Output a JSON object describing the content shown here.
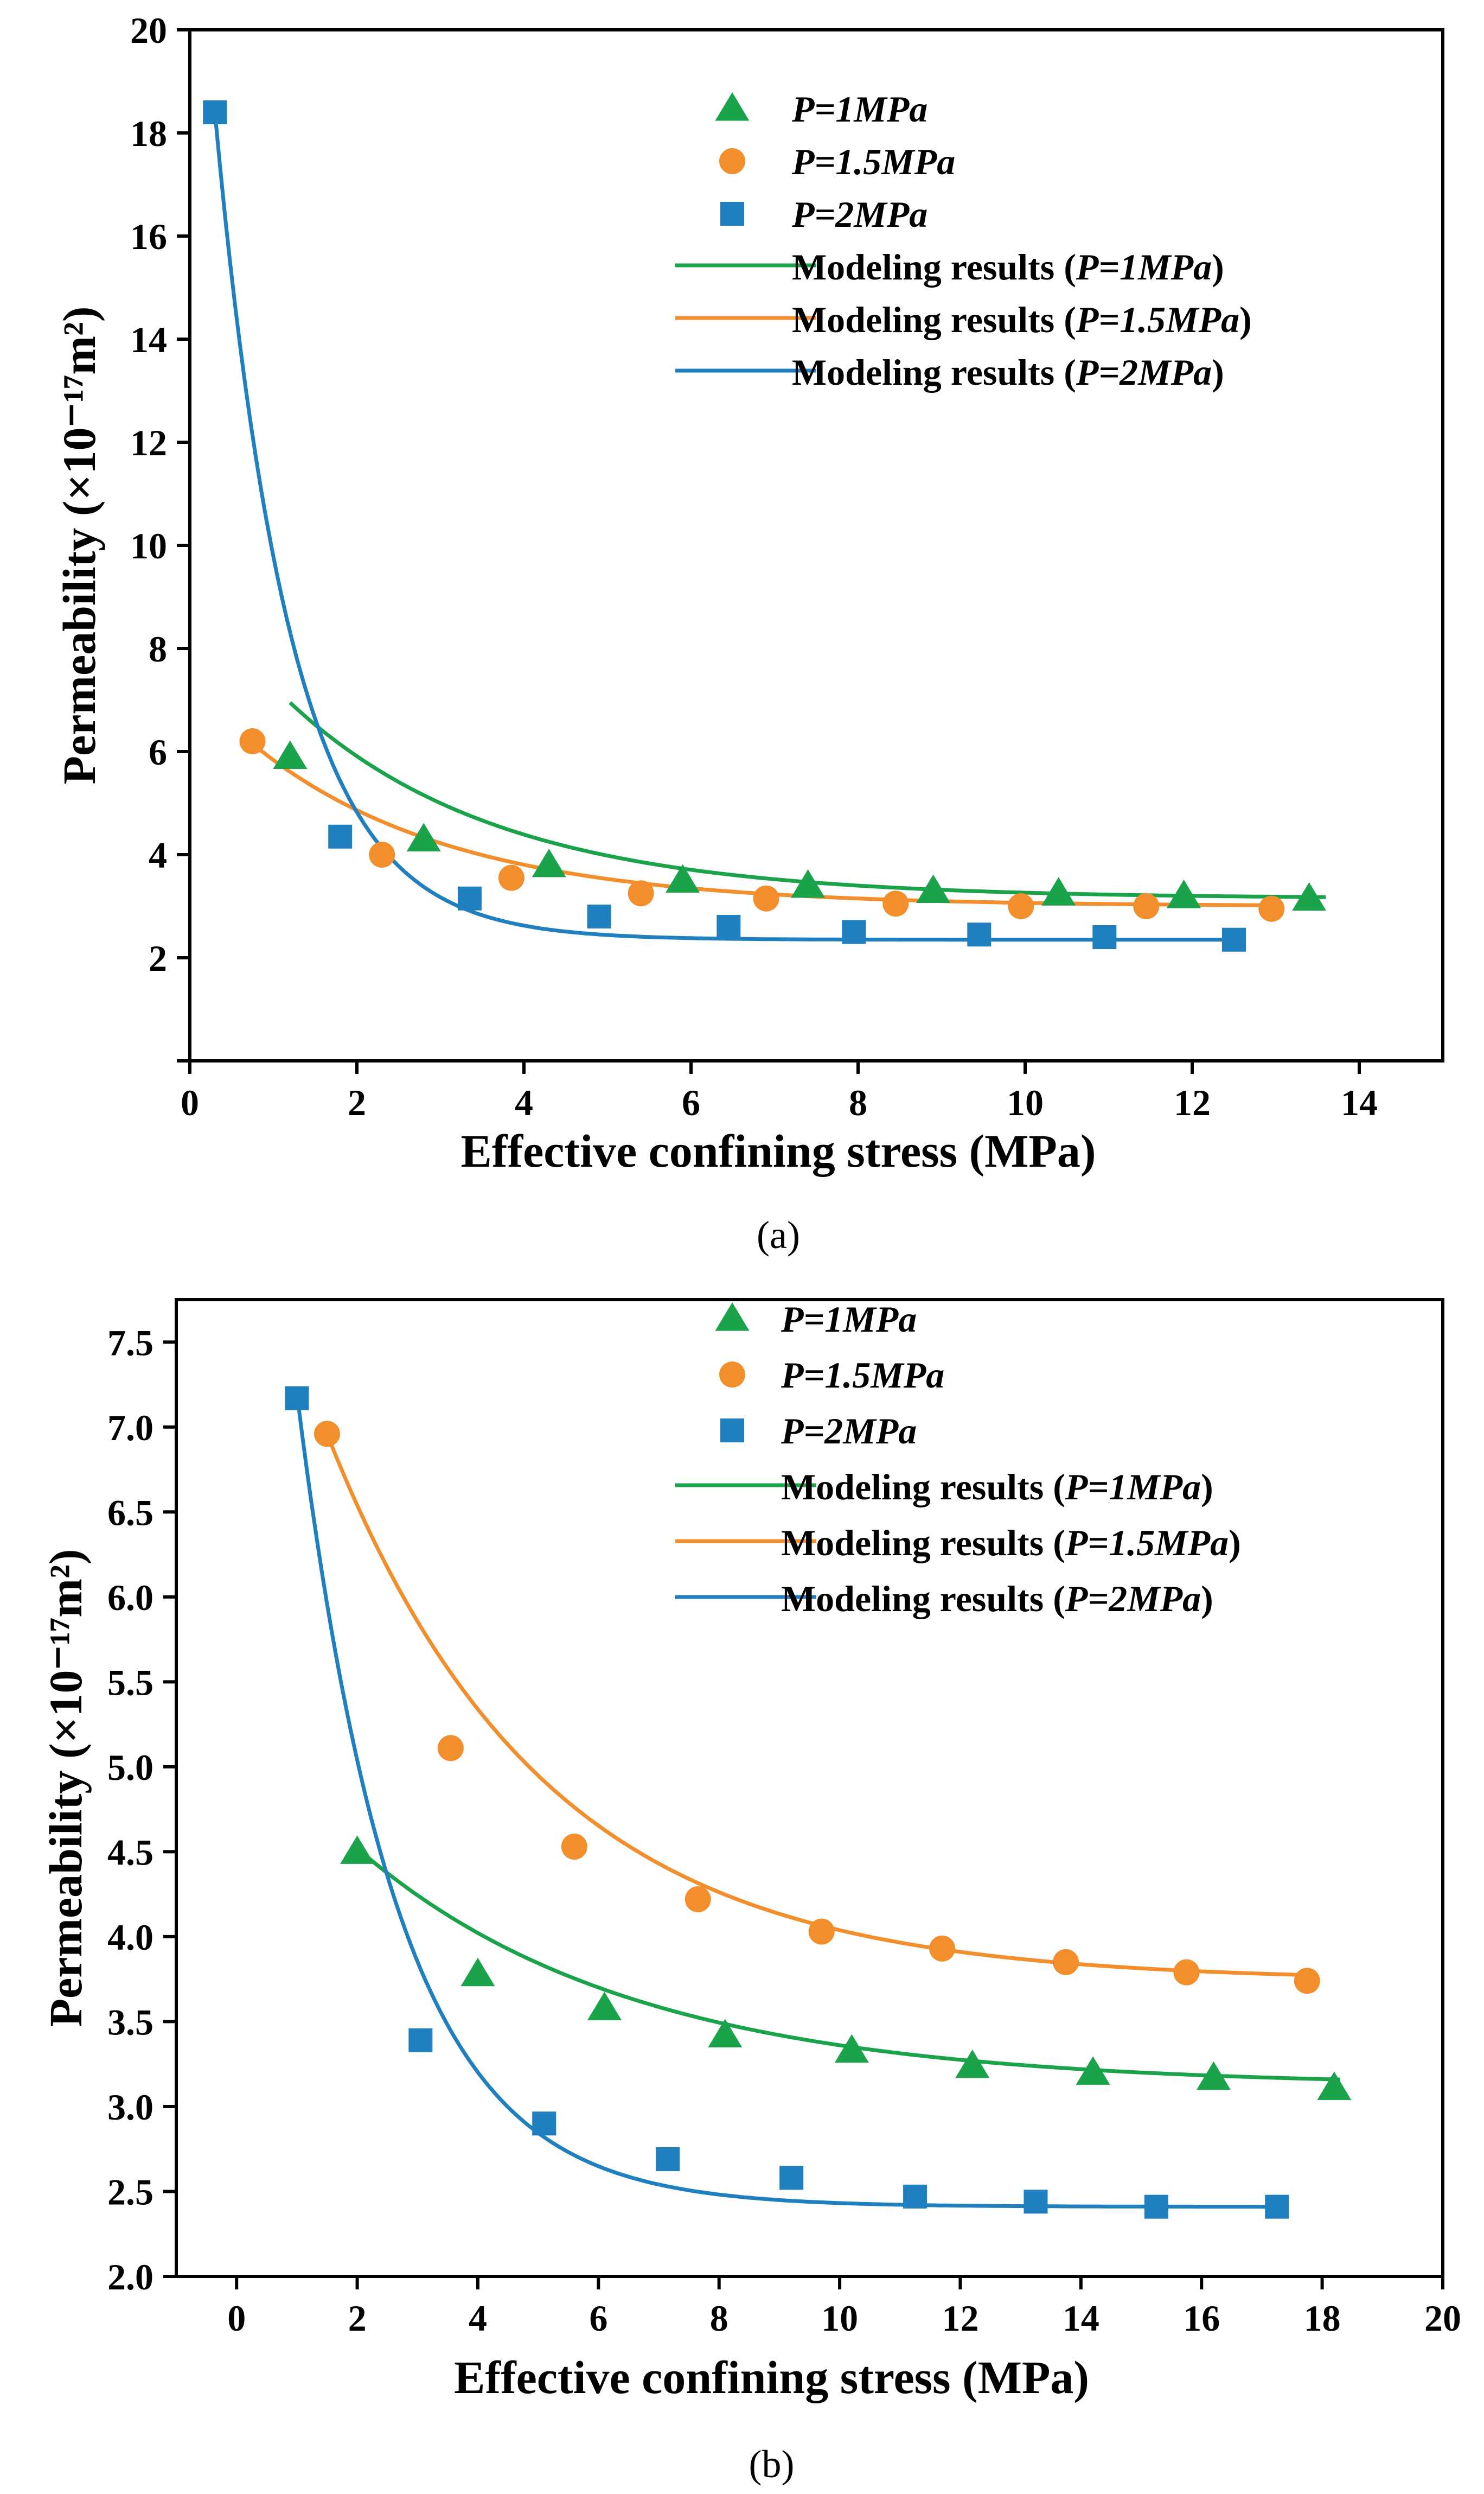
{
  "colors": {
    "green": "#1aa34a",
    "orange": "#f28e2b",
    "blue": "#1f7fbf",
    "axis": "#000000"
  },
  "chart_data": [
    {
      "panel": "(a)",
      "type": "scatter",
      "xlabel": "Effective confining stress (MPa)",
      "ylabel": "Permeability (×10⁻¹⁷m²)",
      "xlim": [
        0,
        15
      ],
      "ylim": [
        0,
        20
      ],
      "xticks": [
        0,
        2,
        4,
        6,
        8,
        10,
        12,
        14
      ],
      "xtick_labels": [
        "0",
        "2",
        "4",
        "6",
        "8",
        "10",
        "12",
        "14"
      ],
      "yticks": [
        0,
        2,
        4,
        6,
        8,
        10,
        12,
        14,
        16,
        18,
        20
      ],
      "ytick_labels": [
        "",
        "2",
        "4",
        "6",
        "8",
        "10",
        "12",
        "14",
        "16",
        "18",
        "20"
      ],
      "legend_position": "top-right",
      "legend": [
        {
          "label": "P=1MPa",
          "kind": "marker",
          "marker": "triangle",
          "color": "#1aa34a"
        },
        {
          "label": "P=1.5MPa",
          "kind": "marker",
          "marker": "circle",
          "color": "#f28e2b"
        },
        {
          "label": "P=2MPa",
          "kind": "marker",
          "marker": "square",
          "color": "#1f7fbf"
        },
        {
          "label_prefix": "Modeling results (",
          "label_param": "P=1MPa",
          "label_suffix": ")",
          "kind": "line",
          "color": "#1aa34a"
        },
        {
          "label_prefix": "Modeling results (",
          "label_param": "P=1.5MPa",
          "label_suffix": ")",
          "kind": "line",
          "color": "#f28e2b"
        },
        {
          "label_prefix": "Modeling results (",
          "label_param": "P=2MPa",
          "label_suffix": ")",
          "kind": "line",
          "color": "#1f7fbf"
        }
      ],
      "series": [
        {
          "name": "P=1MPa",
          "marker": "triangle",
          "color": "#1aa34a",
          "x": [
            1.2,
            2.8,
            4.3,
            5.9,
            7.4,
            8.9,
            10.4,
            11.9,
            13.4
          ],
          "y": [
            5.9,
            4.3,
            3.8,
            3.5,
            3.4,
            3.3,
            3.25,
            3.2,
            3.15
          ]
        },
        {
          "name": "P=1.5MPa",
          "marker": "circle",
          "color": "#f28e2b",
          "x": [
            0.75,
            2.3,
            3.85,
            5.4,
            6.9,
            8.45,
            9.95,
            11.45,
            12.95
          ],
          "y": [
            6.2,
            4.0,
            3.55,
            3.25,
            3.15,
            3.05,
            3.0,
            3.0,
            2.95
          ]
        },
        {
          "name": "P=2MPa",
          "marker": "square",
          "color": "#1f7fbf",
          "x": [
            0.3,
            1.8,
            3.35,
            4.9,
            6.45,
            7.95,
            9.45,
            10.95,
            12.5
          ],
          "y": [
            18.4,
            4.35,
            3.15,
            2.8,
            2.6,
            2.5,
            2.45,
            2.4,
            2.35
          ]
        }
      ],
      "fits": [
        {
          "name": "Modeling results (P=1MPa)",
          "color": "#1aa34a",
          "a": 3.15,
          "b": 3.8,
          "c": 0.4,
          "x0": 1.2,
          "xmin": 1.2,
          "xmax": 13.6
        },
        {
          "name": "Modeling results (P=1.5MPa)",
          "color": "#f28e2b",
          "a": 3.0,
          "b": 3.15,
          "c": 0.42,
          "x0": 0.75,
          "xmin": 0.75,
          "xmax": 13.0
        },
        {
          "name": "Modeling results (P=2MPa)",
          "color": "#1f7fbf",
          "a": 2.35,
          "b": 16.05,
          "c": 1.1,
          "x0": 0.3,
          "xmin": 0.3,
          "xmax": 12.6
        }
      ]
    },
    {
      "panel": "(b)",
      "type": "scatter",
      "xlabel": "Effective confining stress (MPa)",
      "ylabel": "Permeability (×10⁻¹⁷m²)",
      "xlim": [
        -1,
        20
      ],
      "ylim": [
        2.0,
        7.75
      ],
      "xticks": [
        0,
        2,
        4,
        6,
        8,
        10,
        12,
        14,
        16,
        18,
        20
      ],
      "xtick_labels": [
        "0",
        "2",
        "4",
        "6",
        "8",
        "10",
        "12",
        "14",
        "16",
        "18",
        "20"
      ],
      "yticks": [
        2.0,
        2.5,
        3.0,
        3.5,
        4.0,
        4.5,
        5.0,
        5.5,
        6.0,
        6.5,
        7.0,
        7.5
      ],
      "ytick_labels": [
        "2.0",
        "2.5",
        "3.0",
        "3.5",
        "4.0",
        "4.5",
        "5.0",
        "5.5",
        "6.0",
        "6.5",
        "7.0",
        "7.5"
      ],
      "legend_position": "top-right",
      "legend": [
        {
          "label": "P=1MPa",
          "kind": "marker",
          "marker": "triangle",
          "color": "#1aa34a"
        },
        {
          "label": "P=1.5MPa",
          "kind": "marker",
          "marker": "circle",
          "color": "#f28e2b"
        },
        {
          "label": "P=2MPa",
          "kind": "marker",
          "marker": "square",
          "color": "#1f7fbf"
        },
        {
          "label_prefix": "Modeling results (",
          "label_param": "P=1MPa",
          "label_suffix": ")",
          "kind": "line",
          "color": "#1aa34a"
        },
        {
          "label_prefix": "Modeling results (",
          "label_param": "P=1.5MPa",
          "label_suffix": ")",
          "kind": "line",
          "color": "#f28e2b"
        },
        {
          "label_prefix": "Modeling results (",
          "label_param": "P=2MPa",
          "label_suffix": ")",
          "kind": "line",
          "color": "#1f7fbf"
        }
      ],
      "series": [
        {
          "name": "P=1MPa",
          "marker": "triangle",
          "color": "#1aa34a",
          "x": [
            2.0,
            4.0,
            6.1,
            8.1,
            10.2,
            12.2,
            14.2,
            16.2,
            18.2
          ],
          "y": [
            4.5,
            3.78,
            3.58,
            3.42,
            3.33,
            3.24,
            3.2,
            3.17,
            3.11
          ]
        },
        {
          "name": "P=1.5MPa",
          "marker": "circle",
          "color": "#f28e2b",
          "x": [
            1.5,
            3.55,
            5.6,
            7.65,
            9.7,
            11.7,
            13.75,
            15.75,
            17.75
          ],
          "y": [
            6.96,
            5.11,
            4.53,
            4.22,
            4.03,
            3.93,
            3.85,
            3.79,
            3.74
          ]
        },
        {
          "name": "P=2MPa",
          "marker": "square",
          "color": "#1f7fbf",
          "x": [
            1.0,
            3.05,
            5.1,
            7.15,
            9.2,
            11.25,
            13.25,
            15.25,
            17.25
          ],
          "y": [
            7.17,
            3.39,
            2.9,
            2.69,
            2.58,
            2.47,
            2.44,
            2.41,
            2.41
          ]
        }
      ],
      "fits": [
        {
          "name": "Modeling results (P=1MPa)",
          "color": "#1aa34a",
          "a": 3.12,
          "b": 1.4,
          "c": 0.22,
          "x0": 2.0,
          "xmin": 2.0,
          "xmax": 18.3
        },
        {
          "name": "Modeling results (P=1.5MPa)",
          "color": "#f28e2b",
          "a": 3.74,
          "b": 3.22,
          "c": 0.28,
          "x0": 1.5,
          "xmin": 1.5,
          "xmax": 17.8
        },
        {
          "name": "Modeling results (P=2MPa)",
          "color": "#1f7fbf",
          "a": 2.41,
          "b": 4.79,
          "c": 0.6,
          "x0": 1.0,
          "xmin": 1.0,
          "xmax": 17.4
        }
      ]
    }
  ]
}
